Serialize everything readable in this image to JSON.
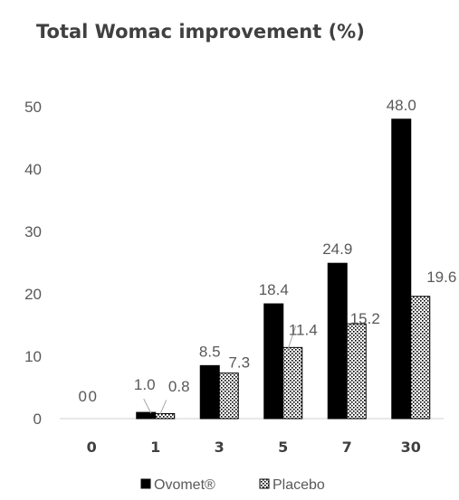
{
  "chart_data": {
    "type": "bar",
    "title": "Total Womac improvement (%)",
    "xlabel": "",
    "ylabel": "",
    "ylim": [
      0,
      50
    ],
    "yticks": [
      0,
      10,
      20,
      30,
      40,
      50
    ],
    "grid": false,
    "legend_position": "bottom",
    "categories": [
      "0",
      "1",
      "3",
      "5",
      "7",
      "30"
    ],
    "series": [
      {
        "name": "Ovomet®",
        "color": "#000000",
        "pattern": "solid",
        "values": [
          0,
          1.0,
          8.5,
          18.4,
          24.9,
          48.0
        ],
        "labels": [
          "0",
          "1.0",
          "8.5",
          "18.4",
          "24.9",
          "48.0"
        ]
      },
      {
        "name": "Placebo",
        "color": "#000000",
        "pattern": "dotted",
        "values": [
          0,
          0.8,
          7.3,
          11.4,
          15.2,
          19.6
        ],
        "labels": [
          "0",
          "0.8",
          "7.3",
          "11.4",
          "15.2",
          "19.6"
        ]
      }
    ]
  }
}
